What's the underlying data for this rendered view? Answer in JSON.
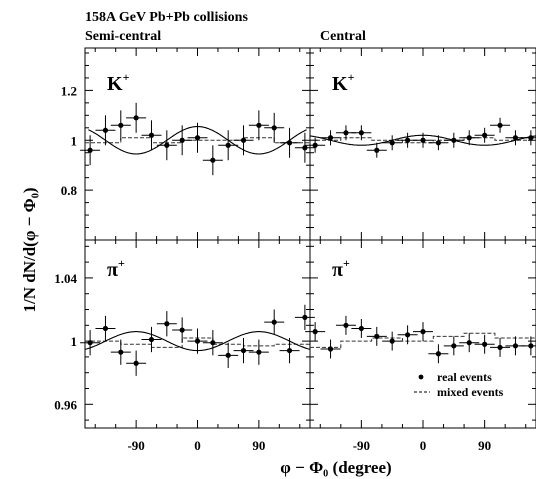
{
  "figure": {
    "title": "158A GeV Pb+Pb collisions",
    "ylabel": "1/N dN/d(φ − Φ₀)",
    "xlabel": "φ − Φ₀  (degree)",
    "legend": [
      {
        "label": "real events",
        "style": "dot"
      },
      {
        "label": "mixed events",
        "style": "dashed"
      }
    ],
    "legend_position": "lower-right of bottom-right panel"
  },
  "chart_data": [
    {
      "type": "scatter",
      "panel": "top-left",
      "column_label": "Semi-central",
      "particle_label": "K+",
      "xlim": [
        -165,
        165
      ],
      "ylim": [
        0.6,
        1.37
      ],
      "x_ticks": [
        -90,
        0,
        90
      ],
      "y_ticks": [
        0.8,
        1.0,
        1.2
      ],
      "y_tick_labels": [
        "0.8",
        "1",
        "1.2"
      ],
      "grid": false,
      "x": [
        -157.5,
        -112.5,
        -67.5,
        -22.5,
        22.5,
        67.5,
        112.5,
        157.5,
        -135,
        -90,
        -45,
        0,
        45,
        90,
        135
      ],
      "real": {
        "x": [
          -157.5,
          -135,
          -112.5,
          -90,
          -67.5,
          -45,
          -22.5,
          0,
          22.5,
          45,
          67.5,
          90,
          112.5,
          135,
          157.5
        ],
        "y": [
          0.96,
          1.04,
          1.06,
          1.09,
          1.02,
          0.98,
          1.0,
          1.01,
          0.92,
          0.98,
          1.0,
          1.06,
          1.05,
          0.99,
          0.97
        ],
        "yerr": [
          0.06,
          0.06,
          0.06,
          0.06,
          0.06,
          0.06,
          0.06,
          0.06,
          0.06,
          0.06,
          0.06,
          0.06,
          0.06,
          0.06,
          0.06
        ]
      },
      "fit_curve": {
        "function": "1 + A*cos(2*x)",
        "A": 0.055,
        "xrange": [
          -160,
          160
        ]
      },
      "mixed": {
        "edges": [
          -165,
          -112.5,
          -67.5,
          -22.5,
          22.5,
          67.5,
          112.5,
          165
        ],
        "y": [
          0.99,
          1.01,
          0.99,
          1.0,
          1.0,
          1.01,
          0.99
        ]
      }
    },
    {
      "type": "scatter",
      "panel": "top-right",
      "column_label": "Central",
      "particle_label": "K+",
      "xlim": [
        -165,
        165
      ],
      "ylim": [
        0.6,
        1.37
      ],
      "x_ticks": [
        -90,
        0,
        90
      ],
      "y_ticks": [
        0.8,
        1.0,
        1.2
      ],
      "grid": false,
      "real": {
        "x": [
          -157.5,
          -135,
          -112.5,
          -90,
          -67.5,
          -45,
          -22.5,
          0,
          22.5,
          45,
          67.5,
          90,
          112.5,
          135,
          157.5
        ],
        "y": [
          0.98,
          1.01,
          1.03,
          1.03,
          0.96,
          0.99,
          1.0,
          1.0,
          0.99,
          1.0,
          1.01,
          1.02,
          1.06,
          1.01,
          1.01
        ],
        "yerr": [
          0.03,
          0.03,
          0.03,
          0.03,
          0.03,
          0.03,
          0.03,
          0.03,
          0.03,
          0.03,
          0.03,
          0.03,
          0.03,
          0.03,
          0.03
        ]
      },
      "fit_curve": {
        "function": "1 + A*cos(2*x)",
        "A": 0.02,
        "xrange": [
          -165,
          165
        ]
      },
      "mixed": {
        "edges": [
          -165,
          -120,
          -75,
          -30,
          15,
          60,
          105,
          165
        ],
        "y": [
          1.0,
          1.01,
          1.0,
          0.99,
          1.0,
          1.01,
          1.0
        ]
      }
    },
    {
      "type": "scatter",
      "panel": "bottom-left",
      "column_label": "Semi-central",
      "particle_label": "π+",
      "xlim": [
        -165,
        165
      ],
      "ylim": [
        0.945,
        1.064
      ],
      "x_ticks": [
        -90,
        0,
        90
      ],
      "x_tick_labels": [
        "-90",
        "0",
        "90"
      ],
      "y_ticks": [
        0.96,
        1.0,
        1.04
      ],
      "y_tick_labels": [
        "0.96",
        "1",
        "1.04"
      ],
      "grid": false,
      "real": {
        "x": [
          -157.5,
          -135,
          -112.5,
          -90,
          -67.5,
          -45,
          -22.5,
          0,
          22.5,
          45,
          67.5,
          90,
          112.5,
          135,
          157.5
        ],
        "y": [
          0.999,
          1.008,
          0.993,
          0.986,
          1.001,
          1.011,
          1.007,
          1.0,
          0.999,
          0.991,
          0.994,
          0.993,
          1.012,
          0.994,
          1.015
        ],
        "yerr": [
          0.008,
          0.008,
          0.008,
          0.008,
          0.008,
          0.008,
          0.008,
          0.008,
          0.008,
          0.008,
          0.008,
          0.008,
          0.008,
          0.008,
          0.008
        ]
      },
      "fit_curve": {
        "function": "1 + A*cos(2*x)",
        "A": -0.006,
        "xrange": [
          -165,
          165
        ]
      },
      "mixed": {
        "edges": [
          -165,
          -112.5,
          -67.5,
          -22.5,
          22.5,
          67.5,
          112.5,
          165
        ],
        "y": [
          1.0,
          0.998,
          0.996,
          1.002,
          0.998,
          0.997,
          0.998
        ]
      }
    },
    {
      "type": "scatter",
      "panel": "bottom-right",
      "column_label": "Central",
      "particle_label": "π+",
      "xlim": [
        -165,
        165
      ],
      "ylim": [
        0.945,
        1.064
      ],
      "x_ticks": [
        -90,
        0,
        90
      ],
      "x_tick_labels": [
        "-90",
        "0",
        "90"
      ],
      "y_ticks": [
        0.96,
        1.0,
        1.04
      ],
      "grid": false,
      "real": {
        "x": [
          -157.5,
          -135,
          -112.5,
          -90,
          -67.5,
          -45,
          -22.5,
          0,
          22.5,
          45,
          67.5,
          90,
          112.5,
          135,
          157.5
        ],
        "y": [
          1.006,
          0.995,
          1.01,
          1.008,
          1.003,
          1.0,
          1.004,
          1.006,
          0.992,
          0.997,
          0.999,
          0.998,
          0.996,
          0.997,
          0.997
        ],
        "yerr": [
          0.006,
          0.006,
          0.006,
          0.006,
          0.006,
          0.006,
          0.006,
          0.006,
          0.006,
          0.006,
          0.006,
          0.006,
          0.006,
          0.006,
          0.006
        ]
      },
      "fit_curve": {
        "function": "1 + A*cos(2*x)",
        "A": 0.0,
        "xrange": [
          -165,
          165
        ]
      },
      "mixed": {
        "edges": [
          -165,
          -120,
          -75,
          -30,
          15,
          60,
          105,
          165
        ],
        "y": [
          0.996,
          1.0,
          1.002,
          1.0,
          1.003,
          1.005,
          1.002
        ]
      }
    }
  ]
}
